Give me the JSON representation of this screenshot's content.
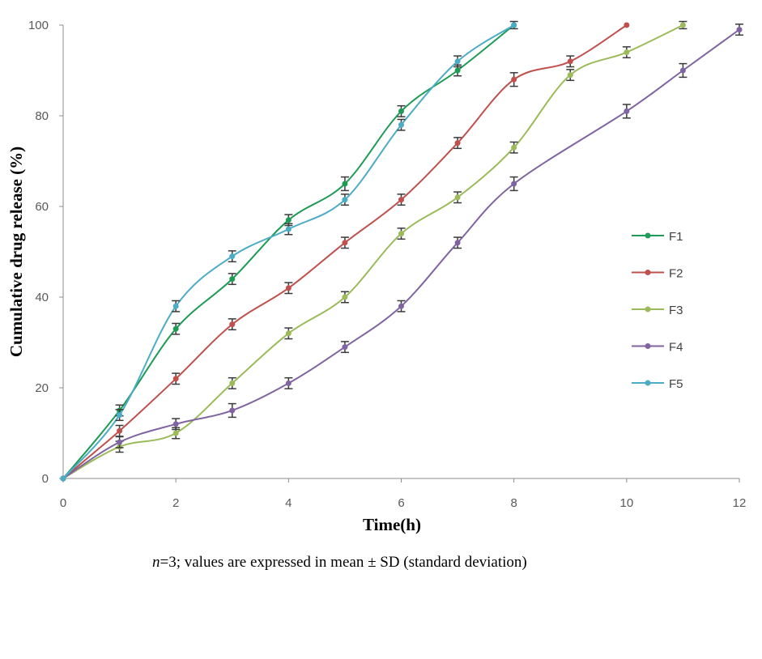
{
  "caption": {
    "n_label": "n",
    "rest": "=3; values are expressed in mean ± SD (standard deviation)"
  },
  "chart_data": {
    "type": "line",
    "title": "",
    "xlabel": "Time(h)",
    "ylabel": "Cumulative drug release (%)",
    "xlim": [
      0,
      12
    ],
    "ylim": [
      0,
      100
    ],
    "xticks": [
      0,
      2,
      4,
      6,
      8,
      10,
      12
    ],
    "yticks": [
      0,
      20,
      40,
      60,
      80,
      100
    ],
    "grid": false,
    "legend_position": "right",
    "error_bars": true,
    "series": [
      {
        "name": "F1",
        "color": "#1e9b55",
        "x": [
          0,
          1,
          2,
          3,
          4,
          5,
          6,
          7,
          8
        ],
        "y": [
          0,
          15,
          33,
          44,
          57,
          65,
          81,
          90,
          100
        ],
        "err": [
          0,
          1.2,
          1.2,
          1.2,
          1.2,
          1.5,
          1.2,
          1.2,
          0.8
        ]
      },
      {
        "name": "F2",
        "color": "#c0504d",
        "x": [
          0,
          1,
          2,
          3,
          4,
          5,
          6,
          7,
          8,
          9,
          10
        ],
        "y": [
          0,
          10.5,
          22,
          34,
          42,
          52,
          61.5,
          74,
          88,
          92,
          100
        ],
        "err": [
          0,
          1.2,
          1.2,
          1.2,
          1.2,
          1.2,
          1.2,
          1.2,
          1.5,
          1.2,
          0
        ]
      },
      {
        "name": "F3",
        "color": "#9bbb59",
        "x": [
          0,
          1,
          2,
          3,
          4,
          5,
          6,
          7,
          8,
          9,
          10,
          11
        ],
        "y": [
          0,
          7,
          10,
          21,
          32,
          40,
          54,
          62,
          73,
          89,
          94,
          100
        ],
        "err": [
          0,
          1.2,
          1.2,
          1.2,
          1.2,
          1.2,
          1.2,
          1.2,
          1.2,
          1.2,
          1.2,
          0.8
        ]
      },
      {
        "name": "F4",
        "color": "#8064a2",
        "x": [
          0,
          1,
          2,
          3,
          4,
          5,
          6,
          7,
          8,
          10,
          11,
          12
        ],
        "y": [
          0,
          8,
          12,
          15,
          21,
          29,
          38,
          52,
          65,
          81,
          90,
          99
        ],
        "err": [
          0,
          1.2,
          1.2,
          1.5,
          1.2,
          1.2,
          1.2,
          1.2,
          1.5,
          1.5,
          1.5,
          1.2
        ]
      },
      {
        "name": "F5",
        "color": "#4bacc6",
        "x": [
          0,
          1,
          2,
          3,
          4,
          5,
          6,
          7,
          8
        ],
        "y": [
          0,
          14,
          38,
          49,
          55,
          61.5,
          78,
          92,
          100
        ],
        "err": [
          0,
          1.2,
          1.2,
          1.2,
          1.2,
          1.2,
          1.2,
          1.2,
          0
        ]
      }
    ]
  }
}
